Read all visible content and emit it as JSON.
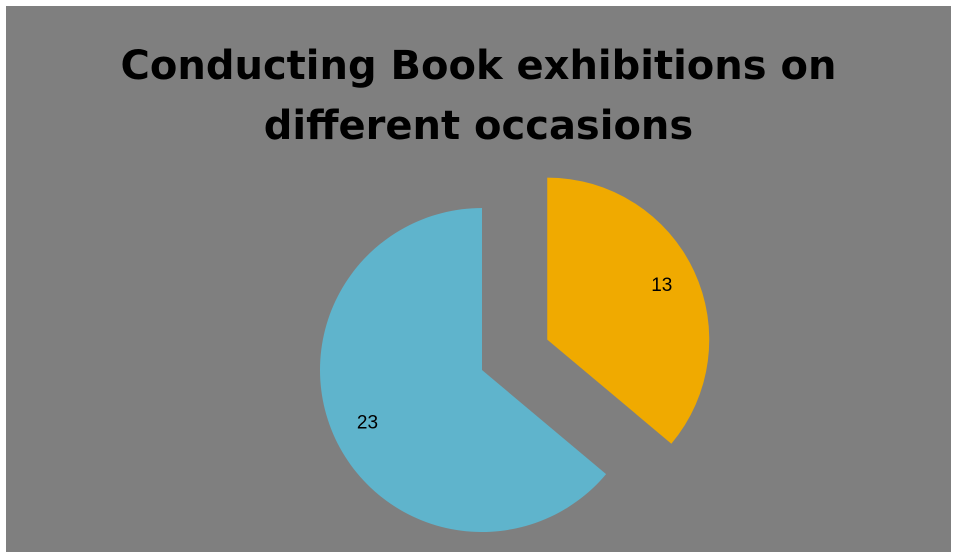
{
  "chart_data": {
    "type": "pie",
    "title_lines": [
      "Conducting Book exhibitions on",
      "different occasions"
    ],
    "slices": [
      {
        "value": 13,
        "label": "13",
        "color": "#f0aa00",
        "exploded": true
      },
      {
        "value": 23,
        "label": "23",
        "color": "#5fb4cc",
        "exploded": false
      }
    ],
    "legend": "none",
    "background": "#7f7f7f"
  }
}
